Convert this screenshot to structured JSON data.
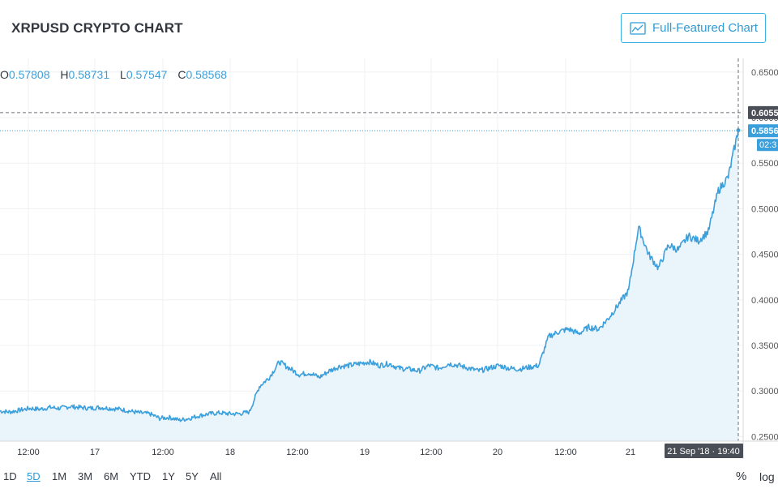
{
  "header": {
    "title": "XRPUSD CRYPTO CHART",
    "full_featured_label": "Full-Featured Chart"
  },
  "ohlc": {
    "o_label": "O",
    "o_value": "0.57808",
    "h_label": "H",
    "h_value": "0.58731",
    "l_label": "L",
    "l_value": "0.57547",
    "c_label": "C",
    "c_value": "0.58568"
  },
  "price_axis": {
    "ticks": [
      "0.6500",
      "0.6000",
      "0.5500",
      "0.5000",
      "0.4500",
      "0.4000",
      "0.3500",
      "0.3000",
      "0.2500"
    ],
    "crosshair_price": "0.6055",
    "last_price": "0.5856",
    "countdown": "02:3"
  },
  "time_axis": {
    "ticks": [
      "12:00",
      "17",
      "12:00",
      "18",
      "12:00",
      "19",
      "12:00",
      "20",
      "12:00",
      "21"
    ],
    "crosshair_time": "21 Sep '18 · 19:40"
  },
  "ranges": [
    "1D",
    "5D",
    "1M",
    "3M",
    "6M",
    "YTD",
    "1Y",
    "5Y",
    "All"
  ],
  "active_range": "5D",
  "scale_buttons": {
    "percent": "%",
    "log": "log"
  },
  "colors": {
    "line": "#3b9fdc",
    "fill": "#eaf4fb",
    "accent": "#2f9bd6",
    "crosshair_bg": "#4a4e57",
    "last_bg": "#3b9fdc"
  },
  "chart_data": {
    "type": "area",
    "ylim": [
      0.245,
      0.665
    ],
    "x_ticks": [
      "12:00",
      "17",
      "12:00",
      "18",
      "12:00",
      "19",
      "12:00",
      "20",
      "12:00",
      "21"
    ],
    "y_ticks": [
      0.65,
      0.6,
      0.55,
      0.5,
      0.45,
      0.4,
      0.35,
      0.3,
      0.25
    ],
    "grid": true,
    "x": [
      0,
      1,
      2,
      3,
      4,
      5,
      6,
      7,
      8,
      9,
      10,
      11,
      12,
      13,
      14,
      15,
      16,
      17,
      18,
      19,
      20,
      21,
      22,
      23,
      24,
      25,
      26,
      27,
      28,
      29,
      30,
      31,
      32,
      33,
      34,
      35,
      36,
      37,
      38,
      39,
      40,
      41,
      42,
      43,
      44,
      45,
      46,
      47,
      48,
      49,
      50,
      51,
      52,
      53,
      54,
      55,
      56,
      57,
      58,
      59,
      60,
      61,
      62,
      63,
      64,
      65,
      66,
      67,
      68,
      69,
      70,
      71,
      72,
      73,
      74
    ],
    "values": [
      0.278,
      0.277,
      0.279,
      0.281,
      0.28,
      0.282,
      0.281,
      0.283,
      0.282,
      0.281,
      0.282,
      0.281,
      0.28,
      0.278,
      0.276,
      0.275,
      0.27,
      0.271,
      0.268,
      0.27,
      0.273,
      0.275,
      0.276,
      0.275,
      0.275,
      0.277,
      0.305,
      0.315,
      0.332,
      0.325,
      0.318,
      0.32,
      0.315,
      0.322,
      0.327,
      0.328,
      0.33,
      0.332,
      0.328,
      0.33,
      0.325,
      0.324,
      0.322,
      0.328,
      0.325,
      0.33,
      0.328,
      0.325,
      0.322,
      0.325,
      0.328,
      0.325,
      0.324,
      0.326,
      0.328,
      0.36,
      0.365,
      0.368,
      0.363,
      0.37,
      0.368,
      0.38,
      0.395,
      0.41,
      0.48,
      0.45,
      0.435,
      0.46,
      0.455,
      0.47,
      0.465,
      0.475,
      0.52,
      0.535,
      0.586
    ],
    "crosshair_value": 0.6055,
    "last_value": 0.5856
  }
}
